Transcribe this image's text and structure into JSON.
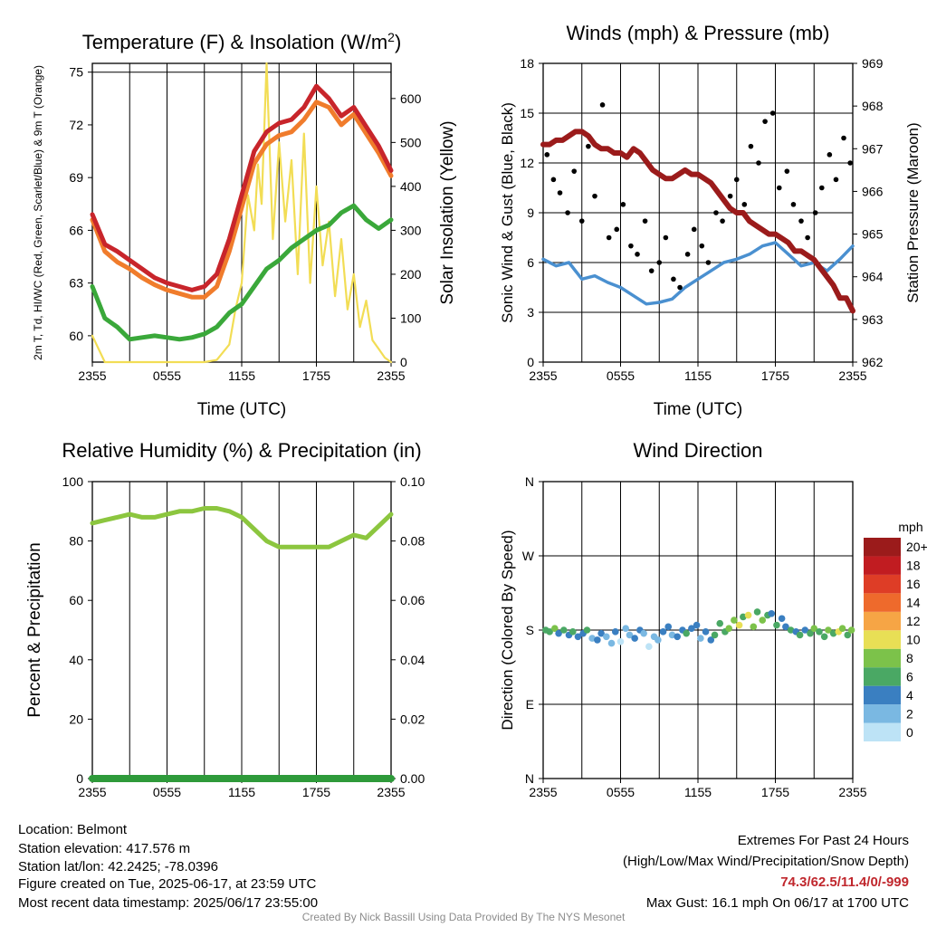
{
  "chart_data": [
    {
      "type": "line",
      "title": "Temperature (F) & Insolation (W/m²)",
      "xlabel": "Time (UTC)",
      "ylabel": "2m T, Td, HI/WC (Red, Green, Scarlet/Blue) & 9m T (Orange)",
      "ylabel_right": "Solar Insolation (Yellow)",
      "x_ticks": [
        "2355",
        "0555",
        "1155",
        "1755",
        "2355"
      ],
      "ylim": [
        58.5,
        75.5
      ],
      "ylim_right": [
        0,
        680
      ],
      "y_ticks": [
        60,
        63,
        66,
        69,
        72,
        75
      ],
      "y_ticks_right": [
        0,
        100,
        200,
        300,
        400,
        500,
        600
      ],
      "colors": {
        "2m_temp": "#c8252b",
        "9m_temp": "#f07c2c",
        "dewpoint": "#3aa83a",
        "insolation": "#f2dd55"
      },
      "series": [
        {
          "name": "2m T",
          "axis": "left",
          "x": [
            0,
            1,
            2,
            3,
            4,
            5,
            6,
            7,
            8,
            9,
            10,
            11,
            12,
            13,
            14,
            15,
            16,
            17,
            18,
            19,
            20,
            21,
            22,
            23,
            24
          ],
          "values": [
            66.9,
            65.2,
            64.8,
            64.3,
            63.8,
            63.3,
            63.0,
            62.8,
            62.6,
            62.8,
            63.5,
            65.5,
            68.0,
            70.5,
            71.6,
            72.1,
            72.3,
            73.0,
            74.2,
            73.5,
            72.5,
            73.0,
            71.9,
            70.8,
            69.4
          ]
        },
        {
          "name": "9m T",
          "axis": "left",
          "x": [
            0,
            1,
            2,
            3,
            4,
            5,
            6,
            7,
            8,
            9,
            10,
            11,
            12,
            13,
            14,
            15,
            16,
            17,
            18,
            19,
            20,
            21,
            22,
            23,
            24
          ],
          "values": [
            66.6,
            64.8,
            64.2,
            63.8,
            63.3,
            62.9,
            62.6,
            62.4,
            62.2,
            62.2,
            62.8,
            64.8,
            67.3,
            69.8,
            70.9,
            71.4,
            71.6,
            72.3,
            73.3,
            73.0,
            72.0,
            72.6,
            71.5,
            70.4,
            69.1
          ]
        },
        {
          "name": "Td",
          "axis": "left",
          "x": [
            0,
            1,
            2,
            3,
            4,
            5,
            6,
            7,
            8,
            9,
            10,
            11,
            12,
            13,
            14,
            15,
            16,
            17,
            18,
            19,
            20,
            21,
            22,
            23,
            24
          ],
          "values": [
            62.8,
            61.0,
            60.5,
            59.8,
            59.9,
            60.0,
            59.9,
            59.8,
            59.9,
            60.1,
            60.5,
            61.3,
            61.8,
            62.8,
            63.8,
            64.3,
            65.0,
            65.5,
            66.0,
            66.3,
            67.0,
            67.4,
            66.6,
            66.1,
            66.6
          ]
        },
        {
          "name": "Solar Insolation",
          "axis": "right",
          "x": [
            0,
            1,
            2,
            3,
            4,
            5,
            6,
            7,
            8,
            9,
            10,
            11,
            11.5,
            12,
            12.5,
            13,
            13.3,
            13.6,
            14,
            14.5,
            15,
            15.5,
            16,
            16.5,
            17,
            17.5,
            18,
            18.5,
            19,
            19.5,
            20,
            20.5,
            21,
            21.5,
            22,
            22.5,
            23,
            23.5,
            24
          ],
          "values": [
            60,
            0,
            0,
            0,
            0,
            0,
            0,
            0,
            0,
            0,
            5,
            40,
            120,
            180,
            380,
            300,
            450,
            360,
            680,
            280,
            500,
            320,
            460,
            200,
            520,
            180,
            400,
            220,
            320,
            150,
            280,
            120,
            200,
            80,
            140,
            50,
            30,
            10,
            0
          ]
        }
      ]
    },
    {
      "type": "line",
      "title": "Winds (mph) & Pressure (mb)",
      "xlabel": "Time (UTC)",
      "ylabel": "Sonic Wind & Gust (Blue, Black)",
      "ylabel_right": "Station Pressure (Maroon)",
      "x_ticks": [
        "2355",
        "0555",
        "1155",
        "1755",
        "2355"
      ],
      "ylim": [
        0,
        18
      ],
      "ylim_right": [
        962,
        969
      ],
      "y_ticks": [
        0,
        3,
        6,
        9,
        12,
        15,
        18
      ],
      "y_ticks_right": [
        962,
        963,
        964,
        965,
        966,
        967,
        968,
        969
      ],
      "colors": {
        "wind": "#4a90d0",
        "gust": "#000000",
        "pressure": "#9b1b1b"
      },
      "series": [
        {
          "name": "Station Pressure",
          "axis": "right",
          "x": [
            0,
            0.5,
            1,
            1.5,
            2,
            2.5,
            3,
            3.5,
            4,
            4.5,
            5,
            5.5,
            6,
            6.5,
            7,
            7.5,
            8,
            8.5,
            9,
            9.5,
            10,
            10.5,
            11,
            11.5,
            12,
            12.5,
            13,
            13.5,
            14,
            14.5,
            15,
            15.5,
            16,
            16.5,
            17,
            17.5,
            18,
            18.5,
            19,
            19.5,
            20,
            20.5,
            21,
            21.5,
            22,
            22.5,
            23,
            23.5,
            24
          ],
          "values": [
            967.1,
            967.1,
            967.2,
            967.2,
            967.3,
            967.4,
            967.4,
            967.3,
            967.1,
            967.0,
            967.0,
            966.9,
            966.9,
            966.8,
            967.0,
            966.9,
            966.7,
            966.5,
            966.4,
            966.3,
            966.3,
            966.4,
            966.5,
            966.4,
            966.4,
            966.3,
            966.2,
            966.0,
            965.8,
            965.6,
            965.5,
            965.5,
            965.3,
            965.2,
            965.1,
            965.0,
            965.0,
            964.9,
            964.8,
            964.6,
            964.6,
            964.5,
            964.4,
            964.2,
            964.0,
            963.8,
            963.5,
            963.5,
            963.2
          ]
        },
        {
          "name": "Sonic Wind",
          "axis": "left",
          "x": [
            0,
            1,
            2,
            3,
            4,
            5,
            6,
            7,
            8,
            9,
            10,
            11,
            12,
            13,
            14,
            15,
            16,
            17,
            18,
            19,
            20,
            21,
            22,
            23,
            24
          ],
          "values": [
            6.2,
            5.8,
            6.0,
            5.0,
            5.2,
            4.8,
            4.5,
            4.0,
            3.5,
            3.6,
            3.8,
            4.5,
            5.0,
            5.5,
            6.0,
            6.2,
            6.5,
            7.0,
            7.2,
            6.5,
            5.8,
            6.0,
            5.5,
            6.2,
            7.0
          ]
        },
        {
          "name": "Gust",
          "axis": "left",
          "x": [
            0.3,
            0.8,
            1.3,
            1.9,
            2.4,
            3.0,
            3.5,
            4.0,
            4.6,
            5.1,
            5.7,
            6.2,
            6.8,
            7.3,
            7.9,
            8.4,
            9.0,
            9.5,
            10.1,
            10.6,
            11.2,
            11.7,
            12.3,
            12.8,
            13.4,
            13.9,
            14.5,
            15.0,
            15.6,
            16.1,
            16.7,
            17.2,
            17.8,
            18.3,
            18.9,
            19.4,
            20.0,
            20.5,
            21.1,
            21.6,
            22.2,
            22.7,
            23.3,
            23.8
          ],
          "values": [
            12.5,
            11.0,
            10.2,
            9.0,
            11.5,
            8.5,
            13.0,
            10.0,
            15.5,
            7.5,
            8.0,
            9.5,
            7.0,
            6.5,
            8.5,
            5.5,
            6.0,
            7.5,
            5.0,
            4.5,
            6.5,
            8.0,
            7.0,
            6.0,
            9.0,
            8.5,
            10.0,
            11.0,
            9.5,
            13.0,
            12.0,
            14.5,
            15.0,
            10.5,
            11.5,
            9.5,
            8.5,
            7.5,
            9.0,
            10.5,
            12.5,
            11.0,
            13.5,
            12.0
          ]
        }
      ]
    },
    {
      "type": "line",
      "title": "Relative Humidity (%) & Precipitation (in)",
      "xlabel": "",
      "ylabel": "Percent & Precipitation",
      "x_ticks": [
        "2355",
        "0555",
        "1155",
        "1755",
        "2355"
      ],
      "ylim": [
        0,
        100
      ],
      "ylim_right": [
        0,
        0.1
      ],
      "y_ticks": [
        0,
        20,
        40,
        60,
        80,
        100
      ],
      "y_ticks_right": [
        "0.00",
        "0.02",
        "0.04",
        "0.06",
        "0.08",
        "0.10"
      ],
      "colors": {
        "rh": "#8cc63f",
        "precip": "#2e9a3a"
      },
      "series": [
        {
          "name": "Relative Humidity",
          "axis": "left",
          "x": [
            0,
            1,
            2,
            3,
            4,
            5,
            6,
            7,
            8,
            9,
            10,
            11,
            12,
            13,
            14,
            15,
            16,
            17,
            18,
            19,
            20,
            21,
            22,
            23,
            24
          ],
          "values": [
            86,
            87,
            88,
            89,
            88,
            88,
            89,
            90,
            90,
            91,
            91,
            90,
            88,
            84,
            80,
            78,
            78,
            78,
            78,
            78,
            80,
            82,
            81,
            85,
            89
          ]
        },
        {
          "name": "Precipitation",
          "axis": "right",
          "x": [
            0,
            24
          ],
          "values": [
            0,
            0
          ]
        }
      ]
    },
    {
      "type": "scatter",
      "title": "Wind Direction",
      "xlabel": "",
      "ylabel": "Direction (Colored By Speed)",
      "x_ticks": [
        "2355",
        "0555",
        "1155",
        "1755",
        "2355"
      ],
      "y_ticks": [
        "N",
        "E",
        "S",
        "W",
        "N"
      ],
      "ylim": [
        0,
        360
      ],
      "colorbar_title": "mph",
      "colorbar_labels": [
        "0",
        "2",
        "4",
        "6",
        "8",
        "10",
        "12",
        "14",
        "16",
        "18",
        "20+"
      ],
      "colorbar_colors": [
        "#bde3f6",
        "#7ab8e2",
        "#3a7fc1",
        "#4aa864",
        "#7cc24a",
        "#e8df55",
        "#f6a545",
        "#ee6a2c",
        "#de3d26",
        "#c11c21",
        "#9b1b1b"
      ],
      "points": {
        "x": [
          0.2,
          0.5,
          0.9,
          1.2,
          1.6,
          2.0,
          2.3,
          2.7,
          3.1,
          3.4,
          3.8,
          4.2,
          4.5,
          4.9,
          5.3,
          5.6,
          6.0,
          6.4,
          6.7,
          7.1,
          7.5,
          7.8,
          8.2,
          8.6,
          8.9,
          9.3,
          9.7,
          10.0,
          10.4,
          10.8,
          11.1,
          11.5,
          11.9,
          12.2,
          12.6,
          13.0,
          13.3,
          13.7,
          14.1,
          14.4,
          14.8,
          15.2,
          15.5,
          15.9,
          16.3,
          16.6,
          17.0,
          17.4,
          17.7,
          18.1,
          18.5,
          18.8,
          19.2,
          19.6,
          19.9,
          20.3,
          20.7,
          21.0,
          21.4,
          21.8,
          22.1,
          22.5,
          22.9,
          23.2,
          23.6,
          23.9
        ],
        "dir": [
          180,
          178,
          182,
          176,
          180,
          174,
          178,
          172,
          176,
          180,
          170,
          168,
          176,
          172,
          164,
          178,
          166,
          182,
          174,
          170,
          180,
          176,
          160,
          172,
          168,
          178,
          184,
          174,
          172,
          180,
          176,
          182,
          186,
          170,
          178,
          168,
          174,
          188,
          178,
          182,
          192,
          186,
          196,
          198,
          184,
          202,
          192,
          198,
          200,
          186,
          194,
          184,
          180,
          178,
          174,
          180,
          176,
          182,
          178,
          172,
          180,
          176,
          178,
          182,
          174,
          180
        ],
        "speed": [
          7,
          6,
          8,
          5,
          7,
          4,
          6,
          5,
          4,
          6,
          3,
          4,
          5,
          3,
          2,
          4,
          1,
          2,
          3,
          4,
          5,
          3,
          1,
          2,
          3,
          4,
          5,
          3,
          4,
          5,
          6,
          4,
          5,
          3,
          4,
          5,
          6,
          7,
          6,
          8,
          9,
          10,
          7,
          11,
          9,
          6,
          8,
          7,
          5,
          6,
          4,
          5,
          6,
          4,
          7,
          5,
          6,
          8,
          7,
          6,
          9,
          7,
          10,
          8,
          7,
          9
        ]
      }
    }
  ],
  "footer": {
    "location": "Location: Belmont",
    "elevation": "Station elevation: 417.576 m",
    "latlon": "Station lat/lon: 42.2425; -78.0396",
    "created": "Figure created on Tue, 2025-06-17, at 23:59 UTC",
    "recent": "Most recent data timestamp: 2025/06/17 23:55:00",
    "extremes_title": "Extremes For Past 24 Hours",
    "extremes_sub": "(High/Low/Max Wind/Precipitation/Snow Depth)",
    "extremes_values": "74.3/62.5/11.4/0/-999",
    "max_gust": "Max Gust: 16.1 mph On 06/17 at 1700 UTC",
    "credit": "Created By Nick Bassill Using Data Provided By The NYS Mesonet"
  }
}
